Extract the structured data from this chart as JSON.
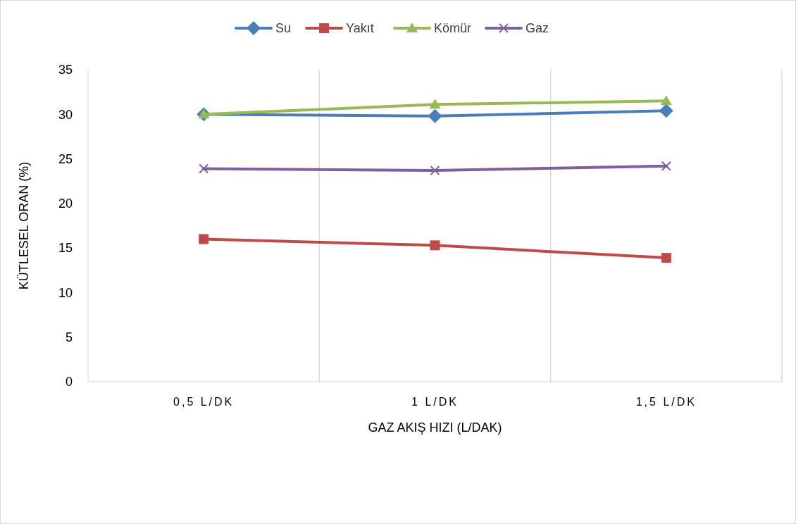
{
  "chart_data": {
    "type": "line",
    "xlabel": "GAZ AKIŞ HIZI (L/DAK)",
    "ylabel": "KÜTLESEL ORAN (%)",
    "categories": [
      "0,5 L/DK",
      "1 L/DK",
      "1,5 L/DK"
    ],
    "series": [
      {
        "name": "Su",
        "color": "#4a7ebb",
        "marker": "diamond",
        "values": [
          30.0,
          29.8,
          30.4
        ]
      },
      {
        "name": "Yakıt",
        "color": "#be4b48",
        "marker": "square",
        "values": [
          16.0,
          15.3,
          13.9
        ]
      },
      {
        "name": "Kömür",
        "color": "#98b954",
        "marker": "triangle",
        "values": [
          30.0,
          31.1,
          31.5
        ]
      },
      {
        "name": "Gaz",
        "color": "#7d60a0",
        "marker": "cross",
        "values": [
          23.9,
          23.7,
          24.2
        ]
      }
    ],
    "ylim": [
      0,
      35
    ],
    "yticks": [
      0,
      5,
      10,
      15,
      20,
      25,
      30,
      35
    ],
    "grid": "x",
    "legend": "top"
  }
}
